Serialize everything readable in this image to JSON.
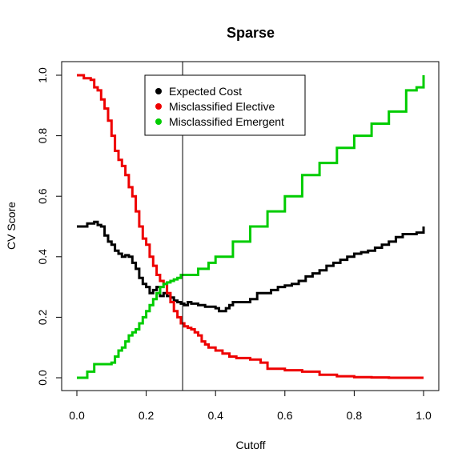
{
  "chart_data": {
    "type": "line",
    "title": "Sparse",
    "xlabel": "Cutoff",
    "ylabel": "CV Score",
    "xlim": [
      0,
      1
    ],
    "ylim": [
      0,
      1
    ],
    "x_ticks": [
      "0.0",
      "0.2",
      "0.4",
      "0.6",
      "0.8",
      "1.0"
    ],
    "y_ticks": [
      "0.0",
      "0.2",
      "0.4",
      "0.6",
      "0.8",
      "1.0"
    ],
    "grid": false,
    "legend_position": "top-center",
    "vline": {
      "x": 0.305
    },
    "series": [
      {
        "name": "Expected Cost",
        "color": "#000000",
        "x": [
          0.0,
          0.02,
          0.03,
          0.04,
          0.05,
          0.06,
          0.07,
          0.08,
          0.09,
          0.1,
          0.11,
          0.12,
          0.13,
          0.14,
          0.15,
          0.16,
          0.17,
          0.18,
          0.19,
          0.2,
          0.21,
          0.22,
          0.23,
          0.24,
          0.25,
          0.26,
          0.27,
          0.28,
          0.29,
          0.3,
          0.31,
          0.32,
          0.33,
          0.35,
          0.37,
          0.39,
          0.4,
          0.41,
          0.42,
          0.43,
          0.44,
          0.45,
          0.46,
          0.48,
          0.5,
          0.52,
          0.54,
          0.56,
          0.58,
          0.6,
          0.62,
          0.64,
          0.66,
          0.68,
          0.7,
          0.72,
          0.74,
          0.76,
          0.78,
          0.8,
          0.82,
          0.84,
          0.86,
          0.88,
          0.9,
          0.92,
          0.94,
          0.96,
          0.98,
          1.0
        ],
        "y": [
          0.5,
          0.5,
          0.51,
          0.51,
          0.515,
          0.505,
          0.5,
          0.47,
          0.45,
          0.44,
          0.42,
          0.41,
          0.4,
          0.405,
          0.4,
          0.38,
          0.36,
          0.33,
          0.31,
          0.3,
          0.28,
          0.29,
          0.3,
          0.27,
          0.28,
          0.27,
          0.265,
          0.255,
          0.25,
          0.245,
          0.24,
          0.25,
          0.245,
          0.24,
          0.235,
          0.235,
          0.23,
          0.22,
          0.22,
          0.23,
          0.24,
          0.25,
          0.25,
          0.25,
          0.26,
          0.28,
          0.28,
          0.29,
          0.3,
          0.305,
          0.31,
          0.32,
          0.335,
          0.345,
          0.355,
          0.37,
          0.38,
          0.39,
          0.4,
          0.41,
          0.415,
          0.42,
          0.43,
          0.44,
          0.45,
          0.465,
          0.475,
          0.475,
          0.48,
          0.5
        ]
      },
      {
        "name": "Misclassified Elective",
        "color": "#ee0000",
        "x": [
          0.0,
          0.02,
          0.04,
          0.05,
          0.06,
          0.07,
          0.08,
          0.09,
          0.1,
          0.11,
          0.12,
          0.13,
          0.14,
          0.15,
          0.16,
          0.17,
          0.18,
          0.19,
          0.2,
          0.21,
          0.22,
          0.23,
          0.24,
          0.25,
          0.26,
          0.27,
          0.28,
          0.29,
          0.3,
          0.31,
          0.32,
          0.33,
          0.34,
          0.35,
          0.36,
          0.37,
          0.38,
          0.4,
          0.42,
          0.44,
          0.46,
          0.5,
          0.53,
          0.55,
          0.6,
          0.65,
          0.7,
          0.75,
          0.8,
          0.85,
          0.9,
          0.95,
          1.0
        ],
        "y": [
          1.0,
          0.99,
          0.985,
          0.96,
          0.95,
          0.92,
          0.89,
          0.85,
          0.8,
          0.75,
          0.72,
          0.7,
          0.67,
          0.63,
          0.6,
          0.55,
          0.5,
          0.46,
          0.44,
          0.4,
          0.37,
          0.34,
          0.32,
          0.31,
          0.28,
          0.25,
          0.22,
          0.2,
          0.18,
          0.17,
          0.165,
          0.16,
          0.15,
          0.14,
          0.12,
          0.11,
          0.1,
          0.09,
          0.08,
          0.07,
          0.065,
          0.06,
          0.05,
          0.03,
          0.025,
          0.02,
          0.01,
          0.005,
          0.002,
          0.001,
          0.0,
          0.0,
          0.0
        ]
      },
      {
        "name": "Misclassified Emergent",
        "color": "#00cc00",
        "x": [
          0.0,
          0.03,
          0.05,
          0.1,
          0.11,
          0.12,
          0.13,
          0.14,
          0.15,
          0.16,
          0.17,
          0.18,
          0.19,
          0.2,
          0.21,
          0.22,
          0.23,
          0.24,
          0.25,
          0.26,
          0.27,
          0.28,
          0.29,
          0.3,
          0.31,
          0.35,
          0.38,
          0.4,
          0.45,
          0.5,
          0.55,
          0.6,
          0.65,
          0.7,
          0.75,
          0.8,
          0.85,
          0.9,
          0.95,
          0.98,
          1.0
        ],
        "y": [
          0.0,
          0.02,
          0.045,
          0.05,
          0.07,
          0.09,
          0.1,
          0.12,
          0.14,
          0.15,
          0.16,
          0.18,
          0.2,
          0.22,
          0.24,
          0.26,
          0.28,
          0.3,
          0.31,
          0.315,
          0.32,
          0.325,
          0.33,
          0.34,
          0.34,
          0.36,
          0.38,
          0.4,
          0.45,
          0.5,
          0.55,
          0.6,
          0.67,
          0.71,
          0.76,
          0.8,
          0.84,
          0.88,
          0.95,
          0.96,
          1.0
        ]
      }
    ]
  }
}
